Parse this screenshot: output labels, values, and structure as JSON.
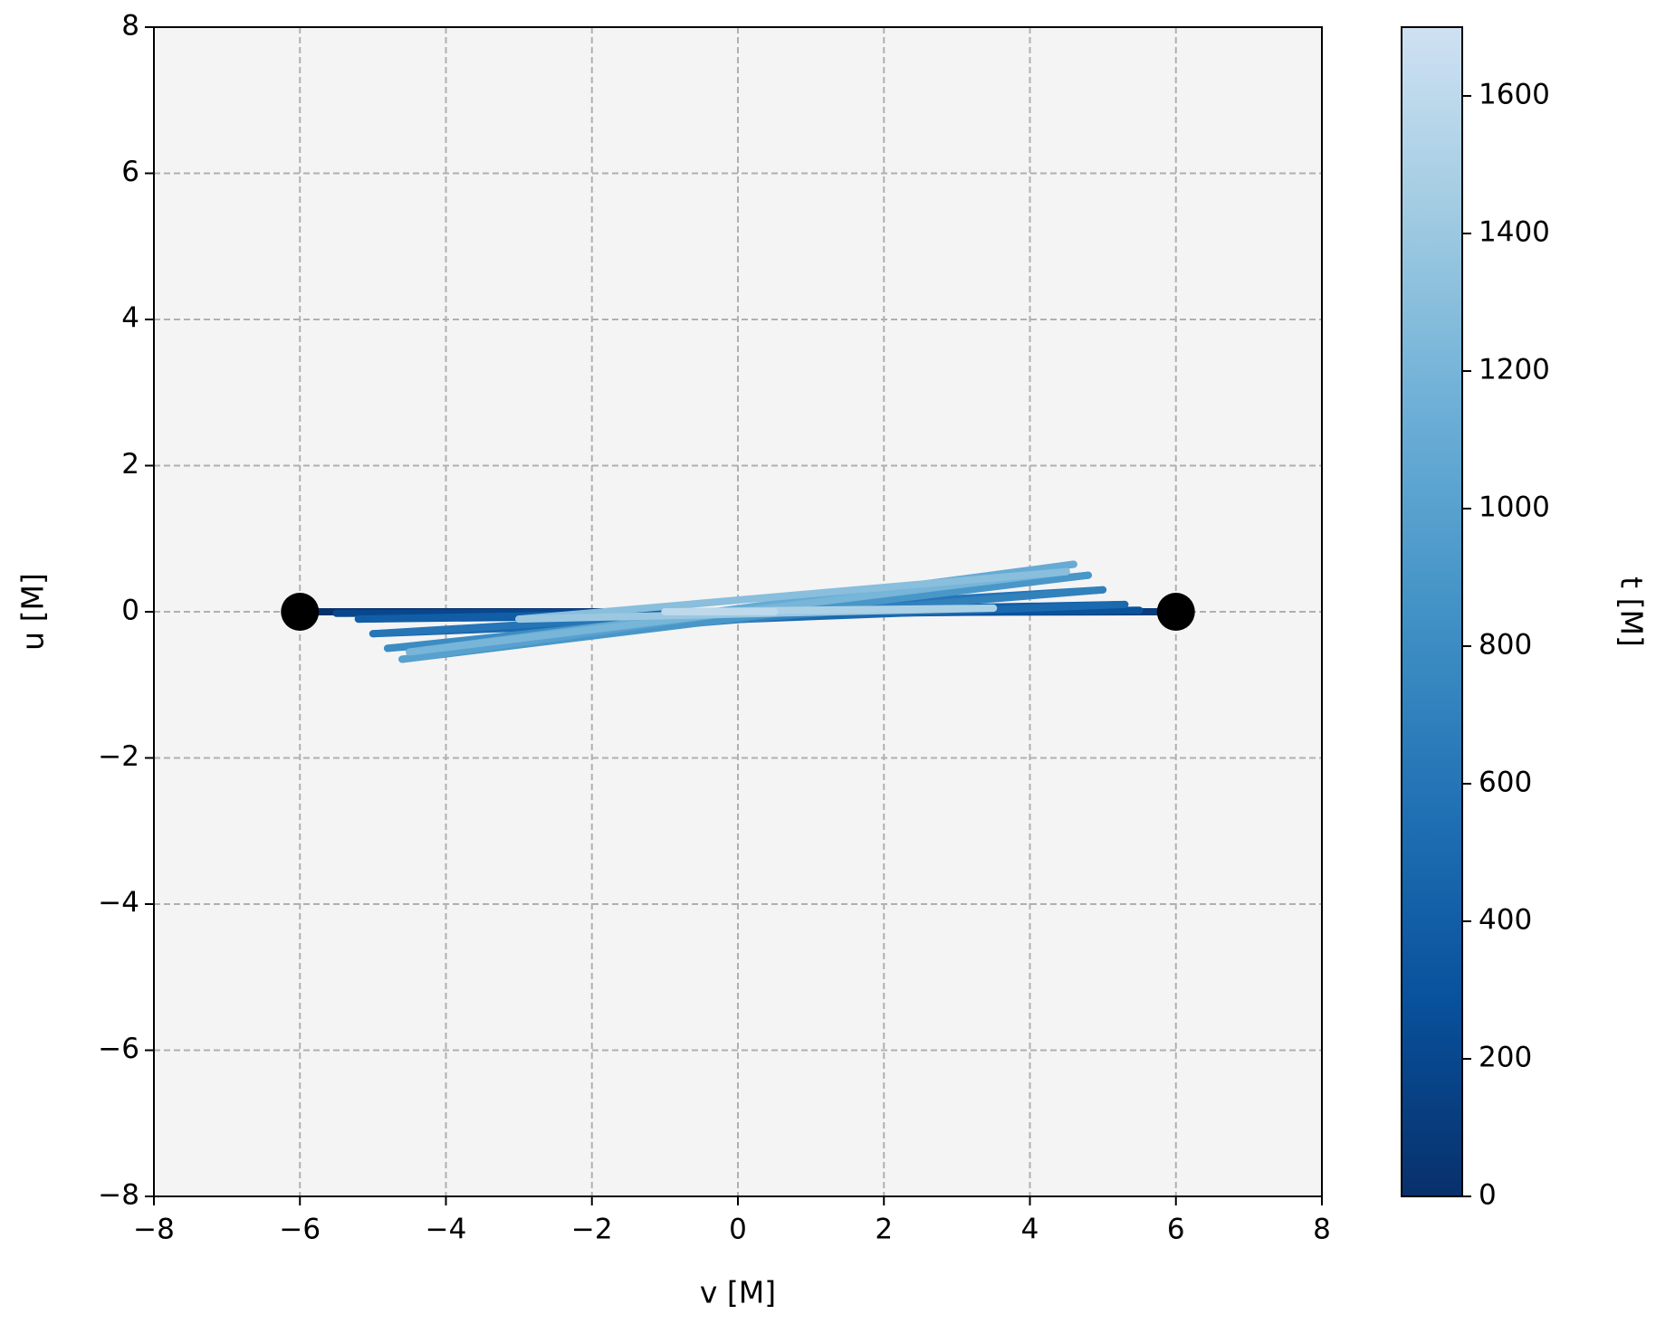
{
  "chart_data": {
    "type": "trajectory",
    "xlabel": "v [M]",
    "ylabel": "u [M]",
    "xlim": [
      -8,
      8
    ],
    "ylim": [
      -8,
      8
    ],
    "xticks": [
      {
        "value": -8,
        "label": "−8"
      },
      {
        "value": -6,
        "label": "−6"
      },
      {
        "value": -4,
        "label": "−4"
      },
      {
        "value": -2,
        "label": "−2"
      },
      0,
      2,
      4,
      6,
      8
    ],
    "yticks": [
      {
        "value": -8,
        "label": "−8"
      },
      {
        "value": -6,
        "label": "−6"
      },
      {
        "value": -4,
        "label": "−4"
      },
      {
        "value": -2,
        "label": "−2"
      },
      0,
      2,
      4,
      6,
      8
    ],
    "grid": true,
    "x": [
      -6,
      6,
      -5.5,
      5.5,
      -5.2,
      5.3,
      -5,
      5,
      -4.8,
      4.8,
      -4.6,
      4.6,
      -4.5,
      4.5,
      -3,
      3.5,
      -1,
      0.5
    ],
    "y": [
      0,
      0,
      -0.02,
      0.02,
      -0.1,
      0.1,
      -0.3,
      0.3,
      -0.5,
      0.5,
      -0.65,
      0.65,
      -0.55,
      0.55,
      -0.1,
      0.05,
      0,
      0
    ],
    "t": [
      0,
      100,
      200,
      300,
      400,
      500,
      600,
      700,
      800,
      900,
      1000,
      1100,
      1200,
      1300,
      1400,
      1500,
      1600,
      1700
    ],
    "markers": {
      "x": [
        -6,
        6
      ],
      "y": [
        0,
        0
      ],
      "color": "#000000"
    },
    "colormap": [
      "#08306b",
      "#08519c",
      "#2171b5",
      "#4292c6",
      "#6baed6",
      "#9ecae1",
      "#cfe1f2"
    ],
    "colorbar": {
      "label": "t [M]",
      "lim": [
        0,
        1700
      ],
      "ticks": [
        0,
        200,
        400,
        600,
        800,
        1000,
        1200,
        1400,
        1600
      ]
    }
  }
}
